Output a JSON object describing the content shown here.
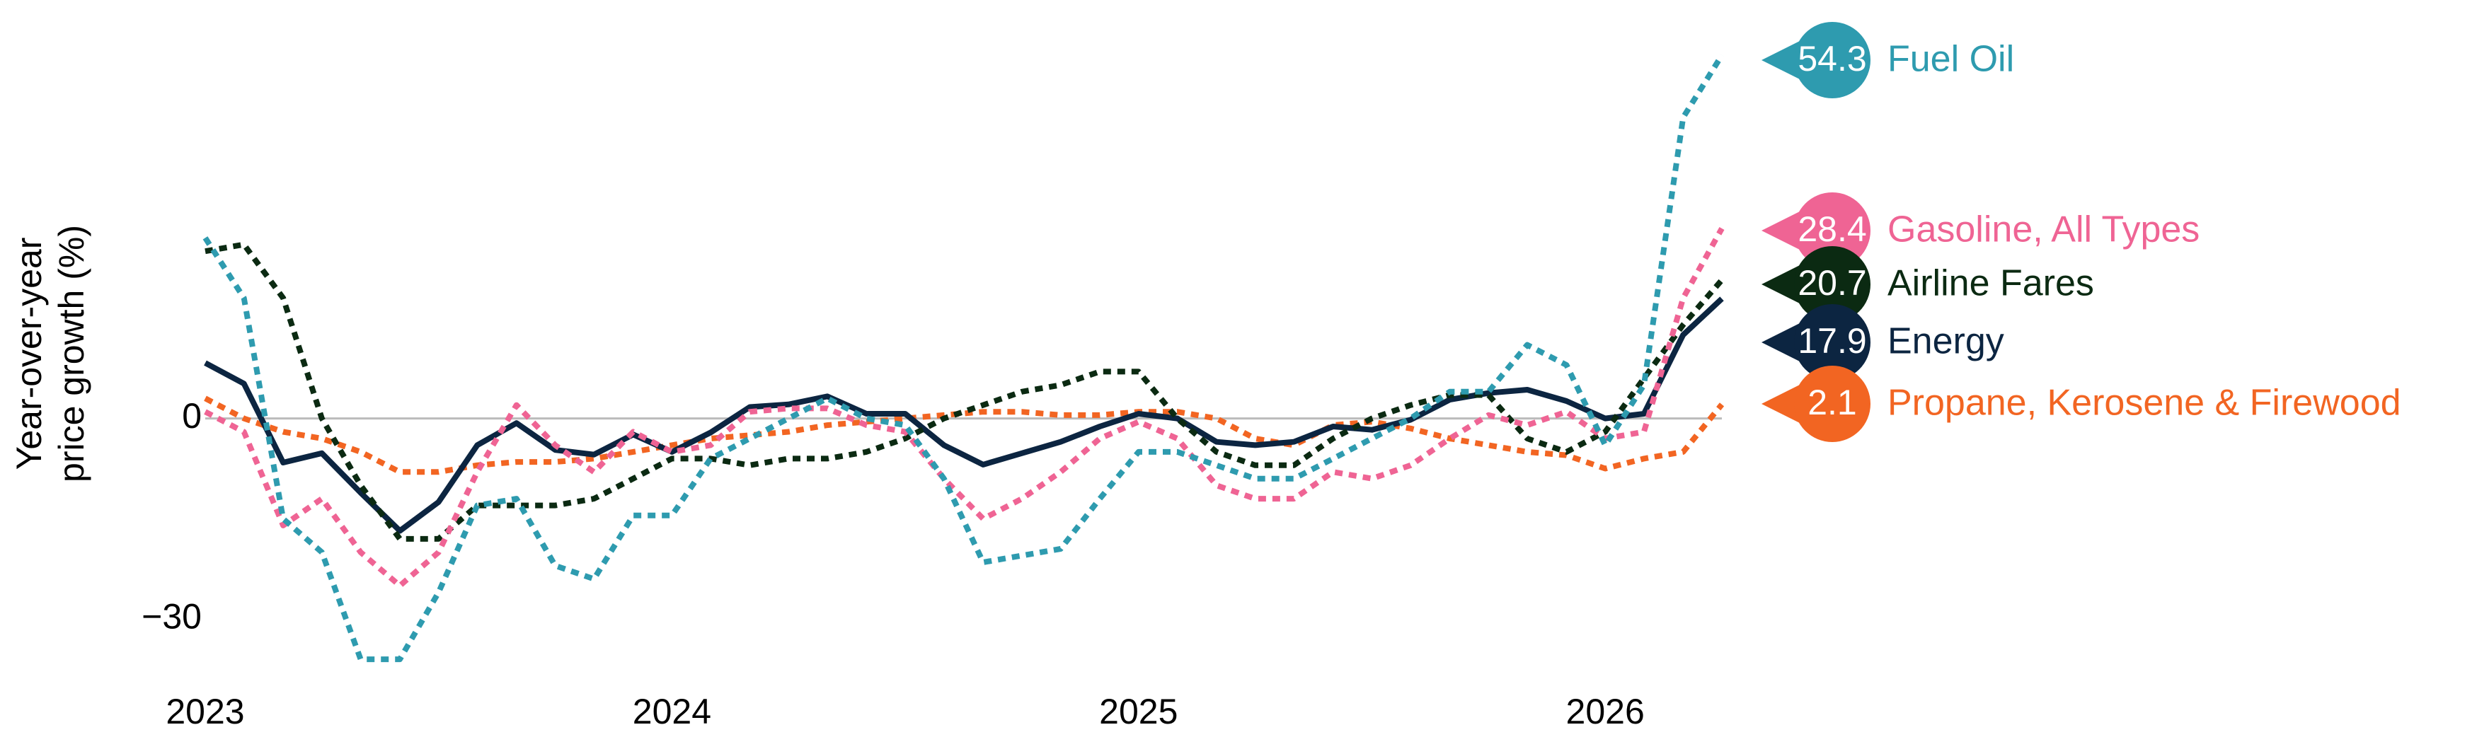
{
  "chart_data": {
    "type": "line",
    "ylabel": "Year-over-year price growth (%)",
    "x": [
      2023.0,
      2023.083,
      2023.167,
      2023.25,
      2023.333,
      2023.417,
      2023.5,
      2023.583,
      2023.667,
      2023.75,
      2023.833,
      2023.917,
      2024.0,
      2024.083,
      2024.167,
      2024.25,
      2024.333,
      2024.417,
      2024.5,
      2024.583,
      2024.667,
      2024.75,
      2024.833,
      2024.917,
      2025.0,
      2025.083,
      2025.167,
      2025.25,
      2025.333,
      2025.417,
      2025.5,
      2025.583,
      2025.667,
      2025.75,
      2025.833,
      2025.917,
      2026.0,
      2026.083,
      2026.167,
      2026.25
    ],
    "xlim": [
      2023,
      2026.25
    ],
    "xticks": [
      2023,
      2024,
      2025,
      2026
    ],
    "ylim": [
      -38,
      56
    ],
    "yticks": [
      {
        "value": -30,
        "label": "−30"
      },
      0
    ],
    "zero_line": true,
    "series": [
      {
        "name": "Fuel Oil",
        "color": "#2e9baf",
        "style": "dashed",
        "values": [
          27,
          18,
          -15,
          -20,
          -36,
          -36,
          -26,
          -13,
          -12,
          -22,
          -24,
          -14.5,
          -14.5,
          -6,
          -3,
          0,
          3,
          0,
          -1,
          -9,
          -21.5,
          -20.5,
          -19.5,
          -12,
          -5,
          -5,
          -7,
          -9,
          -9,
          -6,
          -3,
          0,
          4,
          4,
          11,
          8,
          -4,
          5,
          45,
          54.3
        ]
      },
      {
        "name": "Gasoline, All Types",
        "color": "#ef6494",
        "style": "dashed",
        "values": [
          1,
          -2,
          -16,
          -12,
          -20,
          -25,
          -20,
          -8,
          2,
          -4,
          -8,
          -2,
          -5,
          -4,
          1,
          1.5,
          1.5,
          -1,
          -2,
          -9,
          -15,
          -12,
          -8,
          -3,
          -0.5,
          -3,
          -10,
          -12,
          -12,
          -8,
          -9,
          -7,
          -3,
          0.5,
          -1,
          1,
          -3,
          -2,
          18,
          28.4
        ]
      },
      {
        "name": "Airline Fares",
        "color": "#0b2a12",
        "style": "dashed",
        "values": [
          25,
          26,
          18,
          0,
          -10,
          -18,
          -18,
          -13,
          -13,
          -13,
          -12,
          -9,
          -6,
          -6,
          -7,
          -6,
          -6,
          -5,
          -3,
          0,
          2,
          4,
          5,
          7,
          7,
          0,
          -5,
          -7,
          -7,
          -3,
          0,
          2,
          3.5,
          3.5,
          -3,
          -5,
          -2,
          6,
          14,
          20.7
        ]
      },
      {
        "name": "Energy",
        "color": "#0c2541",
        "style": "solid",
        "values": [
          8.3,
          5.2,
          -6.6,
          -5.2,
          -11.1,
          -16.8,
          -12.5,
          -4,
          -0.7,
          -4.7,
          -5.4,
          -2.4,
          -5,
          -2.1,
          1.7,
          2.1,
          3.3,
          0.7,
          0.7,
          -4,
          -6.9,
          -5.2,
          -3.5,
          -1.2,
          0.7,
          0,
          -3.5,
          -4,
          -3.5,
          -1.2,
          -1.7,
          -0.2,
          2.8,
          3.8,
          4.3,
          2.6,
          0,
          0.7,
          12.5,
          17.9
        ]
      },
      {
        "name": "Propane, Kerosene & Firewood",
        "color": "#f26522",
        "style": "dashed",
        "values": [
          3,
          0,
          -2,
          -3,
          -5,
          -8,
          -8,
          -7,
          -6.5,
          -6.5,
          -6,
          -5,
          -4,
          -3,
          -2.5,
          -2,
          -1,
          -0.5,
          0,
          0.5,
          1,
          1,
          0.5,
          0.5,
          1,
          1,
          0,
          -3,
          -4,
          -1,
          -0.5,
          -1.5,
          -3,
          -4,
          -5,
          -5.5,
          -7.5,
          -6,
          -5,
          2.1
        ]
      }
    ]
  }
}
